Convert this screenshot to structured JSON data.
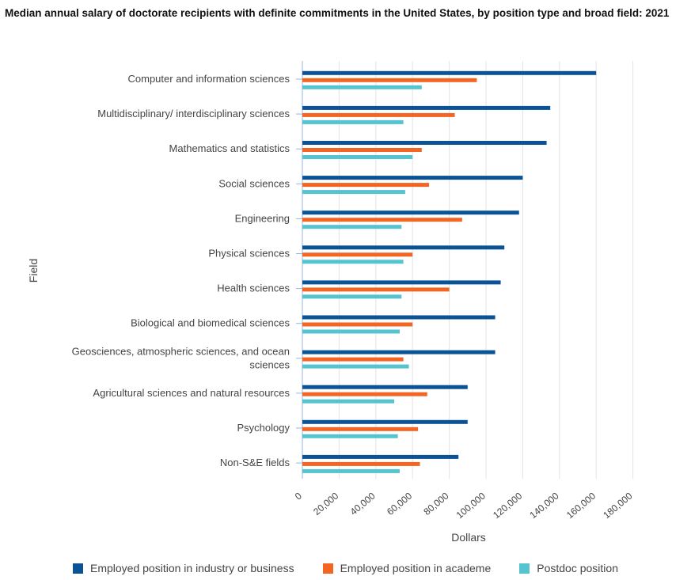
{
  "title": "Median annual salary of doctorate recipients with definite commitments in the United States, by position type and broad field: 2021",
  "colors": {
    "industry": "#0b5394",
    "academe": "#f26522",
    "postdoc": "#56c3d0",
    "grid": "#e3e3e3",
    "axis": "#9ab6e0"
  },
  "chart_data": {
    "type": "bar",
    "orientation": "horizontal",
    "title": "Median annual salary of doctorate recipients with definite commitments in the United States, by position type and broad field: 2021",
    "xlabel": "Dollars",
    "ylabel": "Field",
    "xlim": [
      0,
      180000
    ],
    "ticks": [
      0,
      20000,
      40000,
      60000,
      80000,
      100000,
      120000,
      140000,
      160000,
      180000
    ],
    "tick_labels": [
      "0",
      "20,000",
      "40,000",
      "60,000",
      "80,000",
      "100,000",
      "120,000",
      "140,000",
      "160,000",
      "180,000"
    ],
    "categories": [
      [
        "Computer and information sciences"
      ],
      [
        "Multidisciplinary/ interdisciplinary sciences"
      ],
      [
        "Mathematics and statistics"
      ],
      [
        "Social sciences"
      ],
      [
        "Engineering"
      ],
      [
        "Physical sciences"
      ],
      [
        "Health sciences"
      ],
      [
        "Biological and biomedical sciences"
      ],
      [
        "Geosciences, atmospheric sciences, and ocean",
        "sciences"
      ],
      [
        "Agricultural sciences and natural resources"
      ],
      [
        "Psychology"
      ],
      [
        "Non-S&E fields"
      ]
    ],
    "series": [
      {
        "name": "Employed position in industry or business",
        "key": "industry",
        "values": [
          160000,
          135000,
          133000,
          120000,
          118000,
          110000,
          108000,
          105000,
          105000,
          90000,
          90000,
          85000
        ]
      },
      {
        "name": "Employed position in academe",
        "key": "academe",
        "values": [
          95000,
          83000,
          65000,
          69000,
          87000,
          60000,
          80000,
          60000,
          55000,
          68000,
          63000,
          64000
        ]
      },
      {
        "name": "Postdoc position",
        "key": "postdoc",
        "values": [
          65000,
          55000,
          60000,
          56000,
          54000,
          55000,
          54000,
          53000,
          58000,
          50000,
          52000,
          53000
        ]
      }
    ],
    "legend_position": "bottom"
  }
}
